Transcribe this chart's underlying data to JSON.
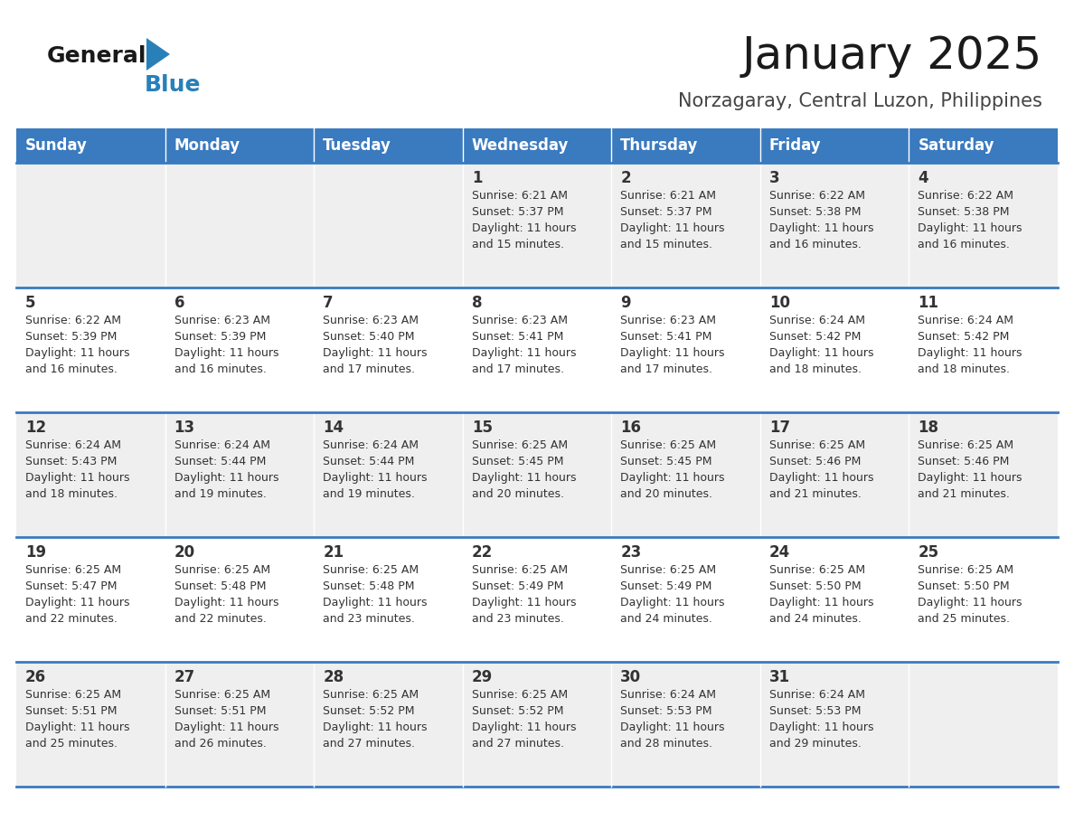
{
  "title": "January 2025",
  "subtitle": "Norzagaray, Central Luzon, Philippines",
  "header_bg": "#3a7abf",
  "header_text": "#ffffff",
  "day_names": [
    "Sunday",
    "Monday",
    "Tuesday",
    "Wednesday",
    "Thursday",
    "Friday",
    "Saturday"
  ],
  "row_bg_odd": "#efefef",
  "row_bg_even": "#ffffff",
  "cell_text_color": "#333333",
  "date_color": "#333333",
  "line_color": "#3a7abf",
  "logo_general_color": "#1a1a1a",
  "logo_blue_color": "#2980b9",
  "logo_triangle_color": "#2980b9",
  "title_fontsize": 36,
  "subtitle_fontsize": 15,
  "header_fontsize": 12,
  "day_num_fontsize": 12,
  "cell_text_fontsize": 9,
  "calendar": [
    [
      {
        "day": "",
        "sunrise": "",
        "sunset": "",
        "daylight": ""
      },
      {
        "day": "",
        "sunrise": "",
        "sunset": "",
        "daylight": ""
      },
      {
        "day": "",
        "sunrise": "",
        "sunset": "",
        "daylight": ""
      },
      {
        "day": "1",
        "sunrise": "6:21 AM",
        "sunset": "5:37 PM",
        "daylight": "11 hours and 15 minutes."
      },
      {
        "day": "2",
        "sunrise": "6:21 AM",
        "sunset": "5:37 PM",
        "daylight": "11 hours and 15 minutes."
      },
      {
        "day": "3",
        "sunrise": "6:22 AM",
        "sunset": "5:38 PM",
        "daylight": "11 hours and 16 minutes."
      },
      {
        "day": "4",
        "sunrise": "6:22 AM",
        "sunset": "5:38 PM",
        "daylight": "11 hours and 16 minutes."
      }
    ],
    [
      {
        "day": "5",
        "sunrise": "6:22 AM",
        "sunset": "5:39 PM",
        "daylight": "11 hours and 16 minutes."
      },
      {
        "day": "6",
        "sunrise": "6:23 AM",
        "sunset": "5:39 PM",
        "daylight": "11 hours and 16 minutes."
      },
      {
        "day": "7",
        "sunrise": "6:23 AM",
        "sunset": "5:40 PM",
        "daylight": "11 hours and 17 minutes."
      },
      {
        "day": "8",
        "sunrise": "6:23 AM",
        "sunset": "5:41 PM",
        "daylight": "11 hours and 17 minutes."
      },
      {
        "day": "9",
        "sunrise": "6:23 AM",
        "sunset": "5:41 PM",
        "daylight": "11 hours and 17 minutes."
      },
      {
        "day": "10",
        "sunrise": "6:24 AM",
        "sunset": "5:42 PM",
        "daylight": "11 hours and 18 minutes."
      },
      {
        "day": "11",
        "sunrise": "6:24 AM",
        "sunset": "5:42 PM",
        "daylight": "11 hours and 18 minutes."
      }
    ],
    [
      {
        "day": "12",
        "sunrise": "6:24 AM",
        "sunset": "5:43 PM",
        "daylight": "11 hours and 18 minutes."
      },
      {
        "day": "13",
        "sunrise": "6:24 AM",
        "sunset": "5:44 PM",
        "daylight": "11 hours and 19 minutes."
      },
      {
        "day": "14",
        "sunrise": "6:24 AM",
        "sunset": "5:44 PM",
        "daylight": "11 hours and 19 minutes."
      },
      {
        "day": "15",
        "sunrise": "6:25 AM",
        "sunset": "5:45 PM",
        "daylight": "11 hours and 20 minutes."
      },
      {
        "day": "16",
        "sunrise": "6:25 AM",
        "sunset": "5:45 PM",
        "daylight": "11 hours and 20 minutes."
      },
      {
        "day": "17",
        "sunrise": "6:25 AM",
        "sunset": "5:46 PM",
        "daylight": "11 hours and 21 minutes."
      },
      {
        "day": "18",
        "sunrise": "6:25 AM",
        "sunset": "5:46 PM",
        "daylight": "11 hours and 21 minutes."
      }
    ],
    [
      {
        "day": "19",
        "sunrise": "6:25 AM",
        "sunset": "5:47 PM",
        "daylight": "11 hours and 22 minutes."
      },
      {
        "day": "20",
        "sunrise": "6:25 AM",
        "sunset": "5:48 PM",
        "daylight": "11 hours and 22 minutes."
      },
      {
        "day": "21",
        "sunrise": "6:25 AM",
        "sunset": "5:48 PM",
        "daylight": "11 hours and 23 minutes."
      },
      {
        "day": "22",
        "sunrise": "6:25 AM",
        "sunset": "5:49 PM",
        "daylight": "11 hours and 23 minutes."
      },
      {
        "day": "23",
        "sunrise": "6:25 AM",
        "sunset": "5:49 PM",
        "daylight": "11 hours and 24 minutes."
      },
      {
        "day": "24",
        "sunrise": "6:25 AM",
        "sunset": "5:50 PM",
        "daylight": "11 hours and 24 minutes."
      },
      {
        "day": "25",
        "sunrise": "6:25 AM",
        "sunset": "5:50 PM",
        "daylight": "11 hours and 25 minutes."
      }
    ],
    [
      {
        "day": "26",
        "sunrise": "6:25 AM",
        "sunset": "5:51 PM",
        "daylight": "11 hours and 25 minutes."
      },
      {
        "day": "27",
        "sunrise": "6:25 AM",
        "sunset": "5:51 PM",
        "daylight": "11 hours and 26 minutes."
      },
      {
        "day": "28",
        "sunrise": "6:25 AM",
        "sunset": "5:52 PM",
        "daylight": "11 hours and 27 minutes."
      },
      {
        "day": "29",
        "sunrise": "6:25 AM",
        "sunset": "5:52 PM",
        "daylight": "11 hours and 27 minutes."
      },
      {
        "day": "30",
        "sunrise": "6:24 AM",
        "sunset": "5:53 PM",
        "daylight": "11 hours and 28 minutes."
      },
      {
        "day": "31",
        "sunrise": "6:24 AM",
        "sunset": "5:53 PM",
        "daylight": "11 hours and 29 minutes."
      },
      {
        "day": "",
        "sunrise": "",
        "sunset": "",
        "daylight": ""
      }
    ]
  ]
}
